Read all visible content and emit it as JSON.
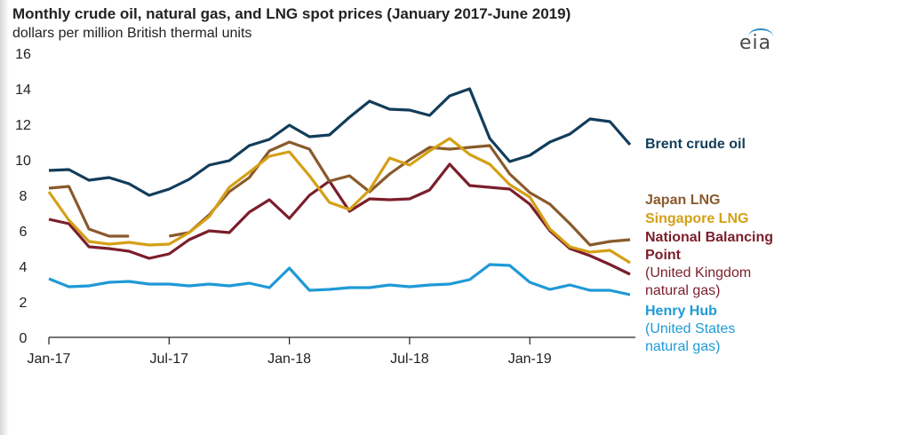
{
  "chart_data": {
    "type": "line",
    "title": "Monthly crude oil, natural gas, and LNG spot prices (January 2017-June 2019)",
    "subtitle": "dollars per million British thermal units",
    "logo_text": "eia",
    "xlabel": "",
    "ylabel": "",
    "ylim": [
      0,
      16
    ],
    "yticks": [
      0,
      2,
      4,
      6,
      8,
      10,
      12,
      14,
      16
    ],
    "xtick_labels": [
      {
        "index": 0,
        "label": "Jan-17"
      },
      {
        "index": 6,
        "label": "Jul-17"
      },
      {
        "index": 12,
        "label": "Jan-18"
      },
      {
        "index": 18,
        "label": "Jul-18"
      },
      {
        "index": 24,
        "label": "Jan-19"
      }
    ],
    "months": [
      "Jan-17",
      "Feb-17",
      "Mar-17",
      "Apr-17",
      "May-17",
      "Jun-17",
      "Jul-17",
      "Aug-17",
      "Sep-17",
      "Oct-17",
      "Nov-17",
      "Dec-17",
      "Jan-18",
      "Feb-18",
      "Mar-18",
      "Apr-18",
      "May-18",
      "Jun-18",
      "Jul-18",
      "Aug-18",
      "Sep-18",
      "Oct-18",
      "Nov-18",
      "Dec-18",
      "Jan-19",
      "Feb-19",
      "Mar-19",
      "Apr-19",
      "May-19",
      "Jun-19"
    ],
    "series": [
      {
        "name": "Brent crude oil",
        "color": "#123d5a",
        "label_lines": [
          "Brent crude oil"
        ],
        "values": [
          9.4,
          9.45,
          8.85,
          9.0,
          8.65,
          8.0,
          8.35,
          8.9,
          9.7,
          9.95,
          10.8,
          11.15,
          11.95,
          11.3,
          11.4,
          12.4,
          13.3,
          12.85,
          12.8,
          12.5,
          13.6,
          14.0,
          11.2,
          9.9,
          10.25,
          11.0,
          11.45,
          12.3,
          12.15,
          10.85
        ]
      },
      {
        "name": "Japan LNG",
        "color": "#8a5a2b",
        "label_lines": [
          "Japan LNG"
        ],
        "values": [
          8.4,
          8.5,
          6.1,
          5.7,
          5.7,
          null,
          5.7,
          5.9,
          6.9,
          8.2,
          9.0,
          10.5,
          11.0,
          10.6,
          8.8,
          9.1,
          8.2,
          9.2,
          10.0,
          10.7,
          10.6,
          10.7,
          10.8,
          9.2,
          8.15,
          7.5,
          6.4,
          5.2,
          5.4,
          5.5
        ]
      },
      {
        "name": "Singapore LNG",
        "color": "#d4a017",
        "label_lines": [
          "Singapore LNG"
        ],
        "values": [
          8.2,
          6.6,
          5.4,
          5.25,
          5.35,
          5.2,
          5.25,
          5.9,
          6.8,
          8.45,
          9.3,
          10.2,
          10.45,
          9.1,
          7.6,
          7.2,
          8.3,
          10.1,
          9.7,
          10.5,
          11.2,
          10.3,
          9.75,
          8.6,
          7.9,
          6.1,
          5.1,
          4.8,
          4.9,
          4.2
        ]
      },
      {
        "name": "National Balancing Point",
        "color": "#7b1e2b",
        "label_lines": [
          "National Balancing",
          "Point"
        ],
        "sub_lines": [
          "(United Kingdom",
          "natural gas)"
        ],
        "values": [
          6.65,
          6.4,
          5.1,
          5.0,
          4.85,
          4.45,
          4.7,
          5.5,
          6.0,
          5.9,
          7.05,
          7.75,
          6.7,
          8.0,
          8.8,
          7.1,
          7.8,
          7.75,
          7.8,
          8.3,
          9.75,
          8.55,
          8.45,
          8.35,
          7.5,
          6.0,
          5.0,
          4.6,
          4.1,
          3.55
        ]
      },
      {
        "name": "Henry Hub",
        "color": "#1f9ad6",
        "label_lines": [
          "Henry Hub"
        ],
        "sub_lines": [
          "(United States",
          "natural gas)"
        ],
        "values": [
          3.3,
          2.85,
          2.9,
          3.1,
          3.15,
          3.0,
          3.0,
          2.9,
          3.0,
          2.9,
          3.05,
          2.8,
          3.9,
          2.65,
          2.7,
          2.8,
          2.8,
          2.95,
          2.85,
          2.95,
          3.0,
          3.25,
          4.1,
          4.05,
          3.1,
          2.7,
          2.95,
          2.65,
          2.65,
          2.4
        ]
      }
    ]
  }
}
